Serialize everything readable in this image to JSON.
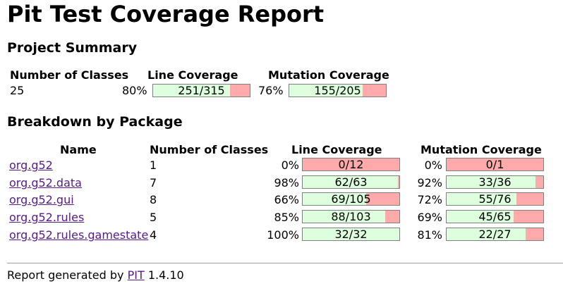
{
  "title": "Pit Test Coverage Report",
  "summary": {
    "heading": "Project Summary",
    "headers": [
      "Number of Classes",
      "Line Coverage",
      "Mutation Coverage"
    ],
    "classes": "25",
    "line_pct": "80%",
    "line_text": "251/315",
    "line_frac": 0.7968,
    "mut_pct": "76%",
    "mut_text": "155/205",
    "mut_frac": 0.7561
  },
  "breakdown": {
    "heading": "Breakdown by Package",
    "headers": [
      "Name",
      "Number of Classes",
      "Line Coverage",
      "Mutation Coverage"
    ],
    "rows": [
      {
        "name": "org.g52",
        "classes": "1",
        "line_pct": "0%",
        "line_text": "0/12",
        "line_frac": 0.0,
        "mut_pct": "0%",
        "mut_text": "0/1",
        "mut_frac": 0.0
      },
      {
        "name": "org.g52.data",
        "classes": "7",
        "line_pct": "98%",
        "line_text": "62/63",
        "line_frac": 0.9841,
        "mut_pct": "92%",
        "mut_text": "33/36",
        "mut_frac": 0.9167
      },
      {
        "name": "org.g52.gui",
        "classes": "8",
        "line_pct": "66%",
        "line_text": "69/105",
        "line_frac": 0.6571,
        "mut_pct": "72%",
        "mut_text": "55/76",
        "mut_frac": 0.7237
      },
      {
        "name": "org.g52.rules",
        "classes": "5",
        "line_pct": "85%",
        "line_text": "88/103",
        "line_frac": 0.8544,
        "mut_pct": "69%",
        "mut_text": "45/65",
        "mut_frac": 0.6923
      },
      {
        "name": "org.g52.rules.gamestate",
        "classes": "4",
        "line_pct": "100%",
        "line_text": "32/32",
        "line_frac": 1.0,
        "mut_pct": "81%",
        "mut_text": "22/27",
        "mut_frac": 0.8148
      }
    ]
  },
  "footer": {
    "prefix": "Report generated by",
    "link": "PIT",
    "version": "1.4.10"
  },
  "colors": {
    "covered": "#ddffdd",
    "uncovered": "#ffaaaa",
    "link": "#551a8b"
  }
}
